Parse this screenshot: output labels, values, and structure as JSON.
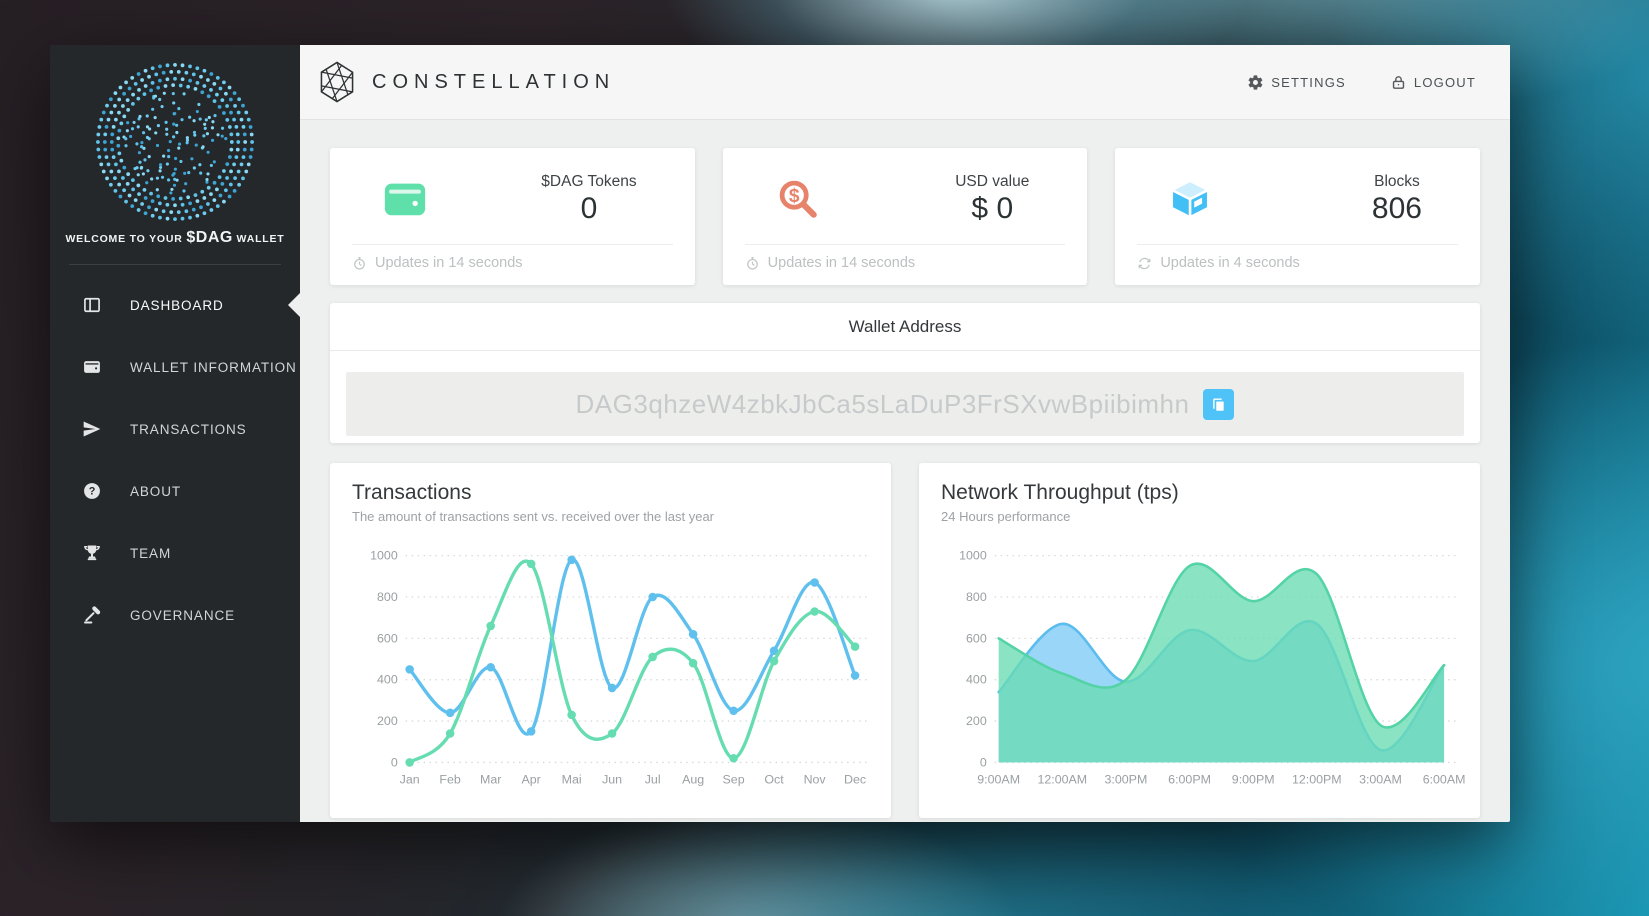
{
  "colors": {
    "accent_blue": "#4fc3f7",
    "green": "#5fe0ab",
    "orange": "#e8836b",
    "sidebar_bg": "#24282b",
    "content_bg": "#eef0ef"
  },
  "header": {
    "brand": "CONSTELLATION",
    "brand_icon": "constellation-hex-icon",
    "settings_label": "SETTINGS",
    "settings_icon": "gear-icon",
    "logout_label": "LOGOUT",
    "logout_icon": "lock-icon"
  },
  "sidebar": {
    "logo_icon": "dag-dotted-sphere-logo",
    "welcome_prefix": "WELCOME TO YOUR ",
    "welcome_token": "$DAG",
    "welcome_suffix": " WALLET",
    "items": [
      {
        "label": "DASHBOARD",
        "icon": "dashboard-icon",
        "active": true
      },
      {
        "label": "WALLET INFORMATION",
        "icon": "wallet-icon",
        "active": false
      },
      {
        "label": "TRANSACTIONS",
        "icon": "send-icon",
        "active": false
      },
      {
        "label": "ABOUT",
        "icon": "question-icon",
        "active": false
      },
      {
        "label": "TEAM",
        "icon": "trophy-icon",
        "active": false
      },
      {
        "label": "GOVERNANCE",
        "icon": "gavel-icon",
        "active": false
      }
    ]
  },
  "stat_cards": [
    {
      "icon": "wallet-green-icon",
      "label": "$DAG Tokens",
      "value": "0",
      "update_icon": "clock-icon",
      "update_text": "Updates in 14 seconds"
    },
    {
      "icon": "usd-search-icon",
      "label": "USD value",
      "value": "$ 0",
      "update_icon": "clock-icon",
      "update_text": "Updates in 14 seconds"
    },
    {
      "icon": "cube-icon",
      "label": "Blocks",
      "value": "806",
      "update_icon": "refresh-icon",
      "update_text": "Updates in 4 seconds"
    }
  ],
  "wallet_address": {
    "title": "Wallet Address",
    "address": "DAG3qhzeW4zbkJbCa5sLaDuP3FrSXvwBpiibimhn",
    "copy_icon": "copy-icon"
  },
  "chart_data": [
    {
      "type": "line",
      "title": "Transactions",
      "subtitle": "The amount of transactions sent vs. received over the last year",
      "categories": [
        "Jan",
        "Feb",
        "Mar",
        "Apr",
        "Mai",
        "Jun",
        "Jul",
        "Aug",
        "Sep",
        "Oct",
        "Nov",
        "Dec"
      ],
      "series": [
        {
          "name": "sent",
          "color": "#5fc0ee",
          "values": [
            450,
            240,
            460,
            150,
            980,
            360,
            800,
            620,
            250,
            540,
            870,
            420
          ]
        },
        {
          "name": "received",
          "color": "#66dcb1",
          "values": [
            0,
            140,
            660,
            960,
            230,
            140,
            510,
            480,
            20,
            490,
            730,
            560
          ]
        }
      ],
      "ylim": [
        0,
        1000
      ],
      "yticks": [
        0,
        200,
        400,
        600,
        800,
        1000
      ],
      "grid": "dotted-horizontal",
      "legend": "none"
    },
    {
      "type": "area",
      "title": "Network Throughput (tps)",
      "subtitle": "24 Hours performance",
      "categories": [
        "9:00AM",
        "12:00AM",
        "3:00PM",
        "6:00PM",
        "9:00PM",
        "12:00PM",
        "3:00AM",
        "6:00AM"
      ],
      "series": [
        {
          "name": "throughput-blue",
          "color": "#5bbced",
          "fill": "#8ed2f6",
          "fill_opacity": 0.9,
          "values": [
            340,
            670,
            390,
            640,
            490,
            670,
            60,
            470
          ]
        },
        {
          "name": "throughput-green",
          "color": "#54d3a6",
          "fill": "#69dcb4",
          "fill_opacity": 0.78,
          "values": [
            600,
            430,
            400,
            950,
            780,
            910,
            180,
            470
          ]
        }
      ],
      "ylim": [
        0,
        1000
      ],
      "yticks": [
        0,
        200,
        400,
        600,
        800,
        1000
      ],
      "grid": "dotted-horizontal",
      "legend": "none"
    }
  ]
}
